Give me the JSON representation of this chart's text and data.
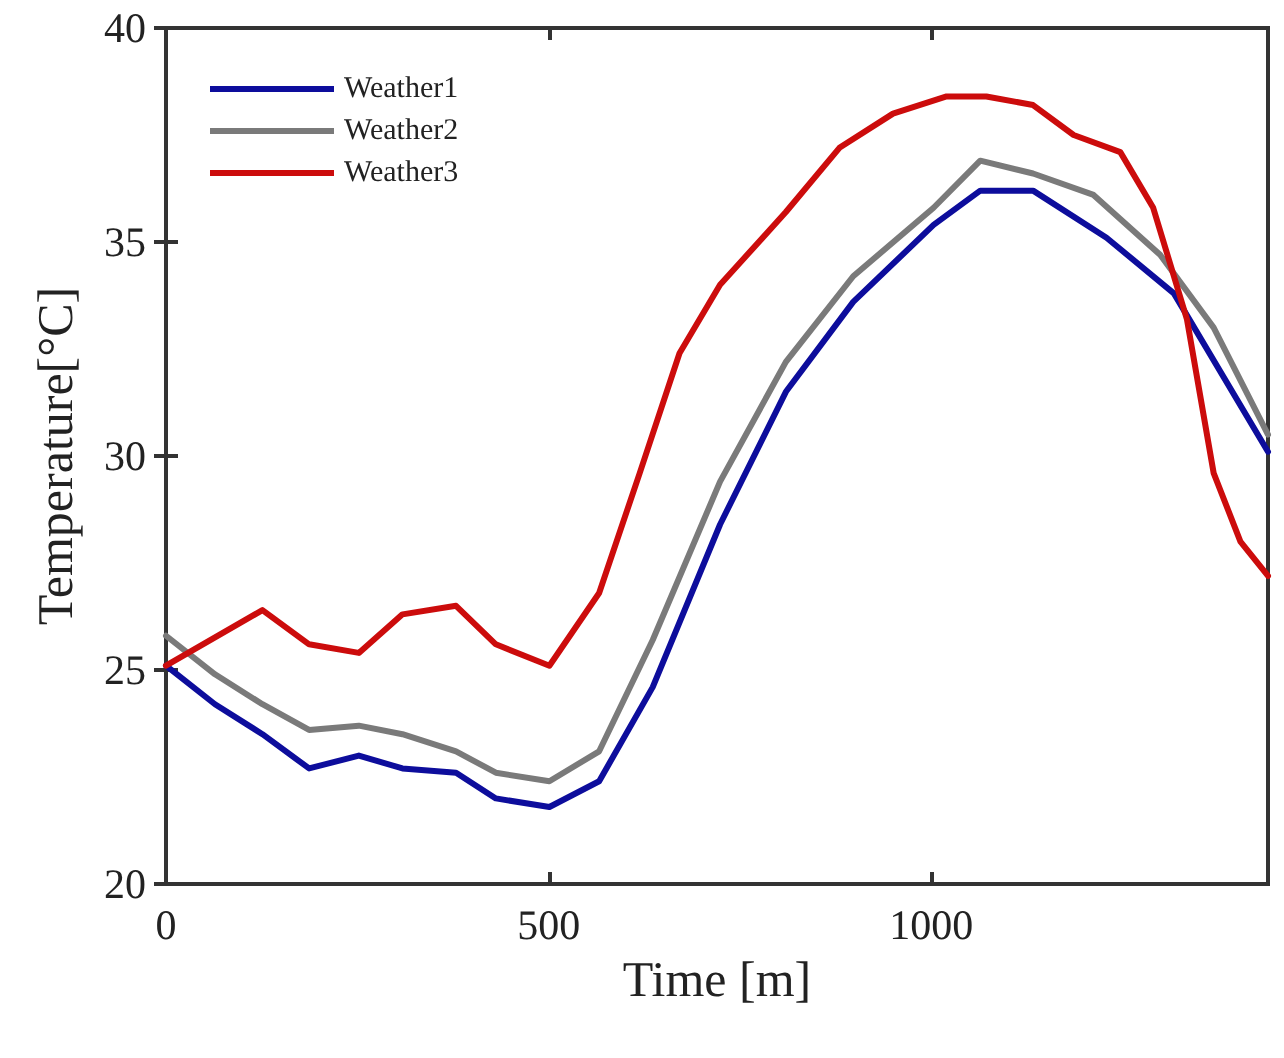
{
  "chart_data": {
    "type": "line",
    "xlabel": "Time [m]",
    "ylabel": "Temperature[°C]",
    "xlim": [
      0,
      1440
    ],
    "xticks": [
      0,
      500,
      1000
    ],
    "ylim": [
      20,
      40
    ],
    "yticks": [
      20,
      25,
      30,
      35,
      40
    ],
    "grid": false,
    "legend": "top left",
    "marker": "none",
    "line_style": "solid",
    "series": [
      {
        "name": "Weather1",
        "color": "#0d0d9c",
        "x": [
          0,
          64,
          126,
          187,
          252,
          309,
          379,
          431,
          501,
          566,
          636,
          724,
          810,
          898,
          1003,
          1064,
          1133,
          1229,
          1317,
          1440
        ],
        "values": [
          25.1,
          24.2,
          23.5,
          22.7,
          23.0,
          22.7,
          22.6,
          22.0,
          21.8,
          22.4,
          24.6,
          28.4,
          31.5,
          33.6,
          35.4,
          36.2,
          36.2,
          35.1,
          33.8,
          30.1
        ]
      },
      {
        "name": "Weather2",
        "color": "#7a7a7a",
        "x": [
          0,
          64,
          126,
          187,
          252,
          309,
          379,
          431,
          501,
          566,
          636,
          724,
          810,
          898,
          1003,
          1064,
          1133,
          1212,
          1299,
          1369,
          1440
        ],
        "values": [
          25.8,
          24.9,
          24.2,
          23.6,
          23.7,
          23.5,
          23.1,
          22.6,
          22.4,
          23.1,
          25.7,
          29.4,
          32.2,
          34.2,
          35.8,
          36.9,
          36.6,
          36.1,
          34.7,
          33.0,
          30.5
        ]
      },
      {
        "name": "Weather3",
        "color": "#cc0c0c",
        "x": [
          0,
          126,
          187,
          252,
          309,
          379,
          431,
          501,
          566,
          619,
          671,
          724,
          810,
          880,
          950,
          1020,
          1072,
          1133,
          1186,
          1247,
          1290,
          1334,
          1369,
          1404,
          1440
        ],
        "values": [
          25.1,
          26.4,
          25.6,
          25.4,
          26.3,
          26.5,
          25.6,
          25.1,
          26.8,
          29.6,
          32.4,
          34.0,
          35.7,
          37.2,
          38.0,
          38.4,
          38.4,
          38.2,
          37.5,
          37.1,
          35.8,
          33.2,
          29.6,
          28.0,
          27.2
        ]
      }
    ]
  }
}
